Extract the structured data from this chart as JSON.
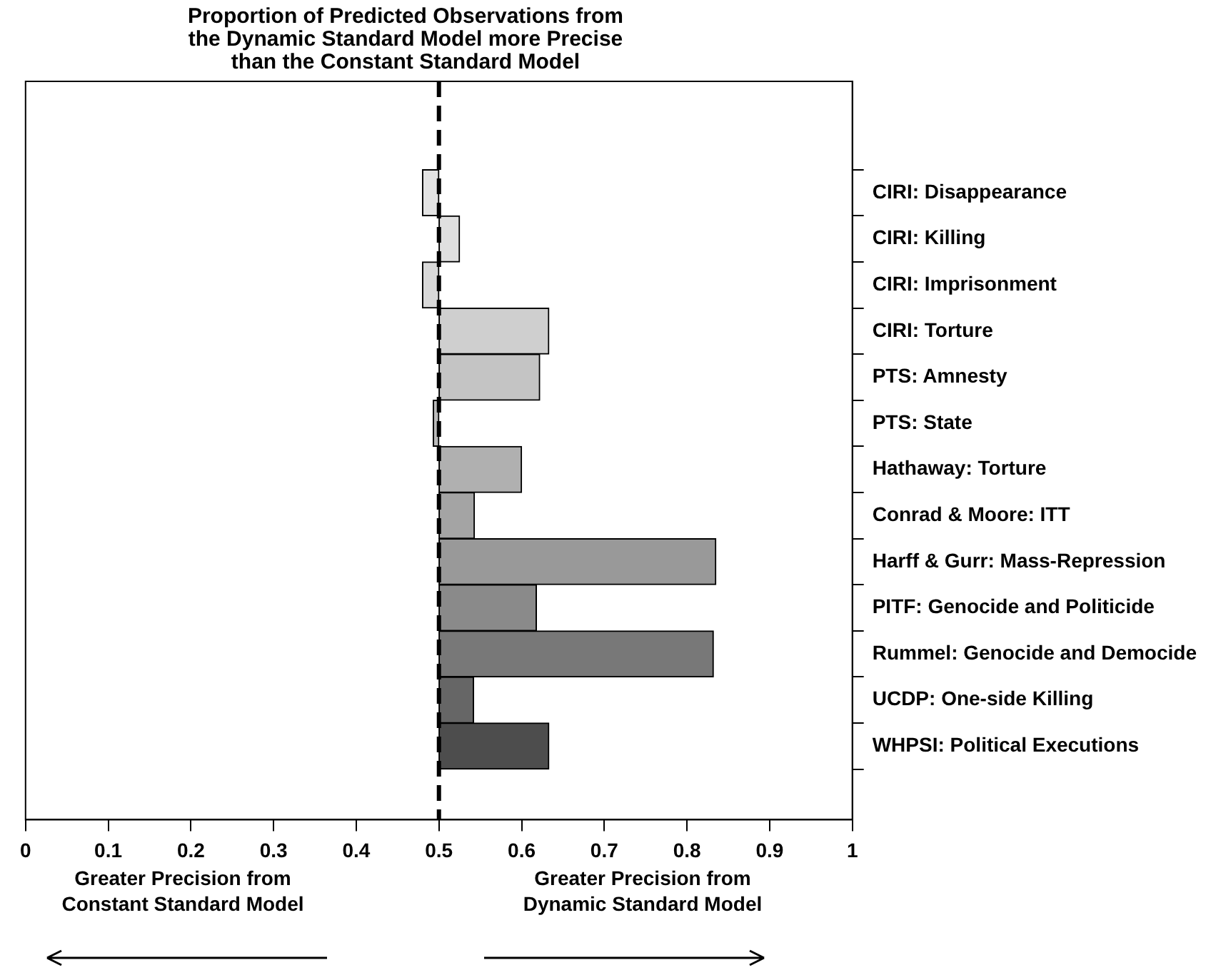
{
  "chart_data": {
    "type": "bar",
    "orientation": "horizontal",
    "title": "Proportion of Predicted Observations from the Dynamic Standard Model more Precise than the Constant Standard Model",
    "categories": [
      "CIRI: Disappearance",
      "CIRI: Killing",
      "CIRI: Imprisonment",
      "CIRI: Torture",
      "PTS: Amnesty",
      "PTS: State",
      "Hathaway: Torture",
      "Conrad & Moore: ITT",
      "Harff & Gurr: Mass-Repression",
      "PITF: Genocide and Politicide",
      "Rummel: Genocide and Democide",
      "UCDP: One-side Killing",
      "WHPSI: Political Executions"
    ],
    "base": [
      0.5,
      0.5,
      0.5,
      0.5,
      0.5,
      0.5,
      0.5,
      0.5,
      0.5,
      0.5,
      0.5,
      0.5,
      0.5
    ],
    "values": [
      -0.02,
      0.025,
      -0.02,
      0.133,
      0.122,
      -0.007,
      0.1,
      0.043,
      0.335,
      0.118,
      0.332,
      0.042,
      0.133
    ],
    "colors": [
      "#e3e3e3",
      "#e0e0e0",
      "#d9d9d9",
      "#cfcfcf",
      "#c4c4c4",
      "#bbbbbb",
      "#b0b0b0",
      "#a4a4a4",
      "#999999",
      "#8a8a8a",
      "#787878",
      "#666666",
      "#4d4d4d"
    ],
    "xlim": [
      0,
      1
    ],
    "xticks": [
      0,
      0.1,
      0.2,
      0.3,
      0.4,
      0.5,
      0.6,
      0.7,
      0.8,
      0.9,
      1
    ],
    "ref_lines": [
      {
        "axis": "x",
        "value": 0.5,
        "color": "#000000",
        "line_style": "dashed"
      }
    ],
    "annotations": [
      "Greater Precision from\nConstant Standard Model",
      "Greater Precision from\nDynamic Standard Model"
    ]
  }
}
